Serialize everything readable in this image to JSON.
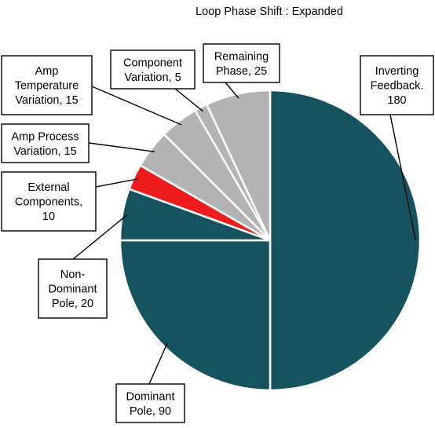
{
  "chart_data": {
    "type": "pie",
    "title": "Loop Phase Shift : Expanded",
    "slices": [
      {
        "label": "Inverting Feedback.",
        "value": 180,
        "color": "#15535f",
        "lines": [
          "Inverting",
          "Feedback.",
          "180"
        ]
      },
      {
        "label": "Dominant Pole",
        "value": 90,
        "color": "#15535f",
        "lines": [
          "Dominant",
          "Pole, 90"
        ]
      },
      {
        "label": "Non-Dominant Pole",
        "value": 20,
        "color": "#15535f",
        "lines": [
          "Non-",
          "Dominant",
          "Pole, 20"
        ]
      },
      {
        "label": "External Components",
        "value": 10,
        "color": "#ee1c1c",
        "lines": [
          "External",
          "Components,",
          "10"
        ]
      },
      {
        "label": "Amp Process Variation",
        "value": 15,
        "color": "#b3b3b3",
        "lines": [
          "Amp Process",
          "Variation, 15"
        ]
      },
      {
        "label": "Amp Temperature Variation",
        "value": 15,
        "color": "#b3b3b3",
        "lines": [
          "Amp",
          "Temperature",
          "Variation, 15"
        ]
      },
      {
        "label": "Component Variation",
        "value": 5,
        "color": "#b3b3b3",
        "lines": [
          "Component",
          "Variation, 5"
        ]
      },
      {
        "label": "Remaining Phase",
        "value": 25,
        "color": "#b3b3b3",
        "lines": [
          "Remaining",
          "Phase, 25"
        ]
      }
    ],
    "total": 360,
    "start": "12 o'clock",
    "direction": "clockwise",
    "legend": "none"
  }
}
